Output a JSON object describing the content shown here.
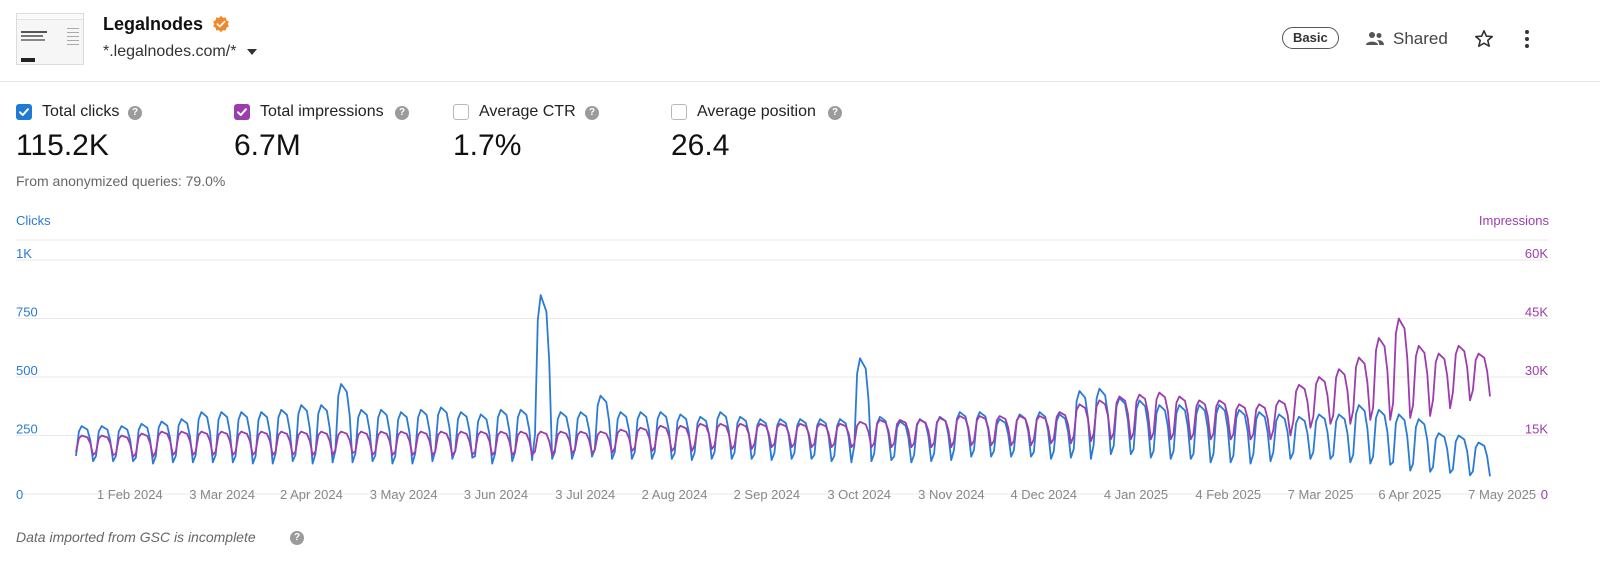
{
  "site": {
    "name": "Legalnodes",
    "url": "*.legalnodes.com/*"
  },
  "header": {
    "plan_badge": "Basic",
    "shared_label": "Shared"
  },
  "metrics": [
    {
      "label": "Total clicks",
      "value": "115.2K",
      "checked": true,
      "color": "#1e7ad3"
    },
    {
      "label": "Total impressions",
      "value": "6.7M",
      "checked": true,
      "color": "#9c3dad"
    },
    {
      "label": "Average CTR",
      "value": "1.7%",
      "checked": false
    },
    {
      "label": "Average position",
      "value": "26.4",
      "checked": false
    }
  ],
  "anonymized_note": "From anonymized queries: 79.0%",
  "footnote": "Data imported from GSC is incomplete",
  "colors": {
    "clicks": "#2a7bd6",
    "impressions": "#9c3dad",
    "grid": "#e9e9e9",
    "axis_text": "#888888"
  },
  "chart_data": {
    "type": "line",
    "left_axis_title": "Clicks",
    "right_axis_title": "Impressions",
    "left_ticks": [
      "0",
      "250",
      "500",
      "750",
      "1K"
    ],
    "right_ticks": [
      "0",
      "15K",
      "30K",
      "45K",
      "60K"
    ],
    "left_ylim": [
      0,
      1000
    ],
    "right_ylim": [
      0,
      60000
    ],
    "x_range": [
      "2024-01-24",
      "2025-05-13"
    ],
    "x_ticks": [
      "1 Feb 2024",
      "3 Mar 2024",
      "2 Apr 2024",
      "3 May 2024",
      "3 Jun 2024",
      "3 Jul 2024",
      "2 Aug 2024",
      "2 Sep 2024",
      "3 Oct 2024",
      "3 Nov 2024",
      "4 Dec 2024",
      "4 Jan 2025",
      "4 Feb 2025",
      "7 Mar 2025",
      "6 Apr 2025",
      "7 May 2025"
    ],
    "grid": true,
    "series": [
      {
        "name": "Clicks",
        "axis": "left",
        "frequency": "weekly",
        "weekly_low": [
          140,
          140,
          140,
          130,
          135,
          135,
          135,
          135,
          130,
          130,
          140,
          130,
          135,
          135,
          140,
          130,
          130,
          140,
          150,
          155,
          130,
          140,
          145,
          150,
          150,
          160,
          150,
          150,
          150,
          150,
          145,
          150,
          150,
          150,
          145,
          150,
          150,
          140,
          135,
          140,
          145,
          135,
          140,
          145,
          160,
          160,
          160,
          160,
          150,
          155,
          150,
          170,
          170,
          155,
          150,
          150,
          135,
          135,
          130,
          140,
          150,
          150,
          150,
          135,
          130,
          125,
          100,
          95,
          90,
          80,
          75
        ],
        "weekly_high": [
          290,
          290,
          290,
          300,
          310,
          320,
          350,
          350,
          350,
          350,
          360,
          380,
          380,
          470,
          360,
          360,
          350,
          360,
          370,
          350,
          340,
          360,
          360,
          850,
          350,
          350,
          420,
          350,
          350,
          350,
          340,
          330,
          350,
          330,
          320,
          320,
          320,
          320,
          320,
          580,
          330,
          310,
          320,
          330,
          350,
          350,
          320,
          340,
          350,
          340,
          440,
          450,
          410,
          400,
          380,
          380,
          380,
          380,
          360,
          350,
          340,
          330,
          340,
          340,
          380,
          360,
          340,
          320,
          260,
          250,
          220
        ]
      },
      {
        "name": "Impressions",
        "axis": "right",
        "frequency": "weekly",
        "weekly_low": [
          10000,
          10000,
          9500,
          9500,
          10000,
          10000,
          10000,
          10000,
          10000,
          10000,
          10000,
          10000,
          10000,
          10500,
          10000,
          10000,
          10000,
          10000,
          10000,
          10000,
          10000,
          10000,
          10000,
          10000,
          10500,
          10500,
          10500,
          11000,
          11000,
          11000,
          11000,
          11500,
          11500,
          11500,
          12000,
          12000,
          12000,
          12000,
          12000,
          12000,
          12000,
          12000,
          12000,
          12000,
          12500,
          12500,
          12500,
          12500,
          13000,
          13000,
          13500,
          14000,
          14000,
          14000,
          14000,
          14000,
          14000,
          14000,
          14000,
          14000,
          15000,
          17000,
          18000,
          18000,
          19000,
          19000,
          19500,
          20000,
          22000,
          24000,
          25000
        ],
        "weekly_high": [
          15000,
          15000,
          15000,
          15500,
          16000,
          16000,
          16000,
          16000,
          16000,
          16000,
          16000,
          16000,
          16000,
          16000,
          16000,
          16000,
          16000,
          16000,
          16000,
          16000,
          16000,
          16000,
          16000,
          16000,
          16000,
          16000,
          16000,
          16500,
          17000,
          17500,
          17500,
          18000,
          18000,
          18000,
          18000,
          18000,
          18000,
          18000,
          18000,
          18500,
          19000,
          19000,
          19000,
          19500,
          20000,
          20000,
          20000,
          20000,
          20000,
          21000,
          23000,
          24000,
          25000,
          25500,
          26000,
          25000,
          24000,
          24000,
          23000,
          23000,
          24000,
          28000,
          30000,
          32000,
          35000,
          40000,
          45000,
          38000,
          36000,
          38000,
          36000
        ]
      }
    ]
  }
}
